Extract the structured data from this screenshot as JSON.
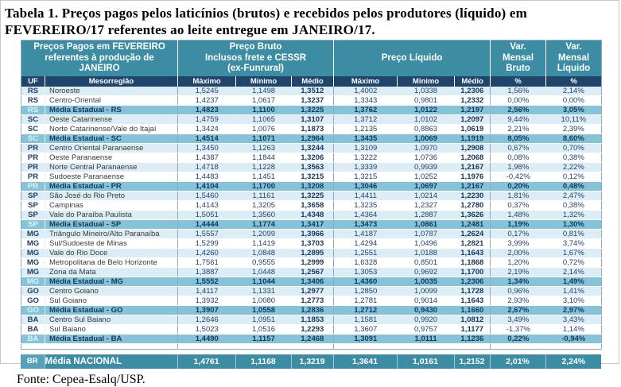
{
  "title": {
    "line1": "Tabela 1. Preços pagos pelos laticínios (brutos) e recebidos pelos produtores (líquido) em",
    "line2": "FEVEREIRO/17 referentes ao leite entregue em JANEIRO/17."
  },
  "source": "Fonte: Cepea-Esalq/USP.",
  "colors": {
    "header_teal": "#3C8DA3",
    "subheader_navy": "#1F456B",
    "row_alt_blue": "#DCEDF6",
    "row_state_average": "#85C3D8",
    "national_row_teal": "#3C8DA3",
    "national_uf_box": "#57A0B5",
    "text_navy": "#17375D"
  },
  "table": {
    "header": {
      "left": [
        "Preços Pagos em FEVEREIRO",
        "referentes à produção de",
        "JANEIRO"
      ],
      "bruto": [
        "Preço Bruto",
        "Inclusos frete e CESSR",
        "(ex-Funrural)"
      ],
      "liquido": [
        "Preço Líquido"
      ],
      "var_bruto": [
        "Var.",
        "Mensal",
        "Bruto"
      ],
      "var_liquido": [
        "Var.",
        "Mensal",
        "Líquido"
      ]
    },
    "subheader": {
      "uf": "UF",
      "mesorregiao": "Mesorregião",
      "max_bruto": "Máximo",
      "min_bruto": "Minimo",
      "med_bruto": "Médio",
      "max_liquido": "Máximo",
      "min_liquido": "Minimo",
      "med_liquido": "Médio",
      "pct_bruto": "%",
      "pct_liquido": "%"
    },
    "rows": [
      {
        "uf": "RS",
        "name": "Noroeste",
        "type": "alt",
        "values": [
          "1,5245",
          "1,1498",
          "1,3512",
          "1,4002",
          "1,0338",
          "1,2306",
          "1,56%",
          "2,14%"
        ]
      },
      {
        "uf": "RS",
        "name": "Centro-Oriental",
        "type": "plain",
        "values": [
          "1,4237",
          "1,0617",
          "1,3237",
          "1,3343",
          "0,9801",
          "1,2332",
          "0,00%",
          "0,00%"
        ]
      },
      {
        "uf": "RS",
        "name": "Média Estadual - RS",
        "type": "media",
        "values": [
          "1,4823",
          "1,1100",
          "1,3225",
          "1,3762",
          "1,0122",
          "1,2197",
          "2,56%",
          "3,05%"
        ]
      },
      {
        "uf": "SC",
        "name": "Oeste Catarinense",
        "type": "alt",
        "values": [
          "1,4759",
          "1,1065",
          "1,3107",
          "1,3712",
          "1,0102",
          "1,2097",
          "9,44%",
          "10,11%"
        ]
      },
      {
        "uf": "SC",
        "name": "Norte Catarinense/Vale do Itajaí",
        "type": "plain",
        "values": [
          "1,3424",
          "1,0076",
          "1,1873",
          "1,2135",
          "0,8863",
          "1,0619",
          "2,21%",
          "2,39%"
        ]
      },
      {
        "uf": "SC",
        "name": "Média Estadual - SC",
        "type": "media",
        "values": [
          "1,4514",
          "1,1071",
          "1,2964",
          "1,3435",
          "1,0069",
          "1,1919",
          "8,05%",
          "8,60%"
        ]
      },
      {
        "uf": "PR",
        "name": "Centro Oriental Paranaense",
        "type": "alt",
        "values": [
          "1,3450",
          "1,1263",
          "1,3244",
          "1,3109",
          "1,0970",
          "1,2908",
          "0,67%",
          "0,70%"
        ]
      },
      {
        "uf": "PR",
        "name": "Oeste Paranaense",
        "type": "plain",
        "values": [
          "1,4387",
          "1,1844",
          "1,3206",
          "1,3222",
          "1,0736",
          "1,2068",
          "0,08%",
          "0,38%"
        ]
      },
      {
        "uf": "PR",
        "name": "Norte Central Paranaense",
        "type": "alt",
        "values": [
          "1,4718",
          "1,1228",
          "1,3563",
          "1,3339",
          "0,9939",
          "1,2167",
          "1,98%",
          "2,22%"
        ]
      },
      {
        "uf": "PR",
        "name": "Sudoeste Paranaense",
        "type": "plain",
        "values": [
          "1,4483",
          "1,1451",
          "1,3215",
          "1,3215",
          "1,0252",
          "1,1976",
          "-0,42%",
          "0,12%"
        ]
      },
      {
        "uf": "PR",
        "name": "Média Estadual - PR",
        "type": "media",
        "values": [
          "1,4104",
          "1,1700",
          "1,3208",
          "1,3046",
          "1,0697",
          "1,2167",
          "0,20%",
          "0,48%"
        ]
      },
      {
        "uf": "SP",
        "name": "São José do Rio Preto",
        "type": "alt",
        "values": [
          "1,5460",
          "1,1161",
          "1,3225",
          "1,4411",
          "1,0214",
          "1,2230",
          "1,81%",
          "2,47%"
        ]
      },
      {
        "uf": "SP",
        "name": "Campinas",
        "type": "plain",
        "values": [
          "1,4143",
          "1,3205",
          "1,3658",
          "1,3235",
          "1,2327",
          "1,2780",
          "0,37%",
          "0,38%"
        ]
      },
      {
        "uf": "SP",
        "name": "Vale do Paraíba Paulista",
        "type": "alt",
        "values": [
          "1,5051",
          "1,3560",
          "1,4348",
          "1,4364",
          "1,2887",
          "1,3626",
          "1,48%",
          "1,32%"
        ]
      },
      {
        "uf": "SP",
        "name": "Média Estadual - SP",
        "type": "media",
        "values": [
          "1,4444",
          "1,1774",
          "1,3417",
          "1,3473",
          "1,0861",
          "1,2481",
          "1,19%",
          "1,30%"
        ]
      },
      {
        "uf": "MG",
        "name": "Triângulo Mineiro/Alto Paranaíba",
        "type": "alt",
        "values": [
          "1,5557",
          "1,2099",
          "1,3966",
          "1,4187",
          "1,0787",
          "1,2624",
          "0,17%",
          "0,81%"
        ]
      },
      {
        "uf": "MG",
        "name": "Sul/Sudoeste de Minas",
        "type": "plain",
        "values": [
          "1,5299",
          "1,1419",
          "1,3703",
          "1,4294",
          "1,0496",
          "1,2821",
          "3,99%",
          "3,74%"
        ]
      },
      {
        "uf": "MG",
        "name": "Vale do Rio Doce",
        "type": "alt",
        "values": [
          "1,4260",
          "1,0848",
          "1,2895",
          "1,2551",
          "1,0188",
          "1,1643",
          "2,00%",
          "1,67%"
        ]
      },
      {
        "uf": "MG",
        "name": "Metropolitana de Belo Horizonte",
        "type": "plain",
        "values": [
          "1,7561",
          "0,9555",
          "1,2999",
          "1,6328",
          "0,8501",
          "1,1868",
          "1,20%",
          "0,72%"
        ]
      },
      {
        "uf": "MG",
        "name": "Zona da Mata",
        "type": "alt",
        "values": [
          "1,3887",
          "1,0448",
          "1,2567",
          "1,3053",
          "0,9692",
          "1,1700",
          "2,19%",
          "2,14%"
        ]
      },
      {
        "uf": "MG",
        "name": "Média Estadual - MG",
        "type": "media",
        "values": [
          "1,5552",
          "1,1044",
          "1,3406",
          "1,4360",
          "1,0035",
          "1,2306",
          "1,34%",
          "1,49%"
        ]
      },
      {
        "uf": "GO",
        "name": "Centro Goiano",
        "type": "alt",
        "values": [
          "1,4117",
          "1,1331",
          "1,2977",
          "1,2850",
          "1,0099",
          "1,1728",
          "0,96%",
          "1,41%"
        ]
      },
      {
        "uf": "GO",
        "name": "Sul Goiano",
        "type": "plain",
        "values": [
          "1,3932",
          "1,0080",
          "1,2773",
          "1,2781",
          "0,9014",
          "1,1643",
          "2,93%",
          "3,10%"
        ]
      },
      {
        "uf": "GO",
        "name": "Média Estadual - GO",
        "type": "media",
        "values": [
          "1,3907",
          "1,0558",
          "1,2836",
          "1,2712",
          "0,9430",
          "1,1660",
          "2,67%",
          "2,97%"
        ]
      },
      {
        "uf": "BA",
        "name": "Centro Sul Baiano",
        "type": "alt",
        "values": [
          "1,2646",
          "1,0951",
          "1,1853",
          "1,1581",
          "0,9920",
          "1,0812",
          "3,49%",
          "3,43%"
        ]
      },
      {
        "uf": "BA",
        "name": "Sul Baiano",
        "type": "plain",
        "values": [
          "1,5023",
          "1,0516",
          "1,2293",
          "1,3607",
          "0,9757",
          "1,1177",
          "-1,37%",
          "1,14%"
        ]
      },
      {
        "uf": "BA",
        "name": "Média Estadual - BA",
        "type": "media",
        "values": [
          "1,4490",
          "1,1157",
          "1,2468",
          "1,3091",
          "1,0111",
          "1,1236",
          "0,22%",
          "-0,94%"
        ]
      }
    ],
    "national": {
      "uf": "BR",
      "label": "Média NACIONAL",
      "values": [
        "1,4761",
        "1,1168",
        "1,3219",
        "1,3641",
        "1,0161",
        "1,2152",
        "2,01%",
        "2,24%"
      ]
    }
  }
}
